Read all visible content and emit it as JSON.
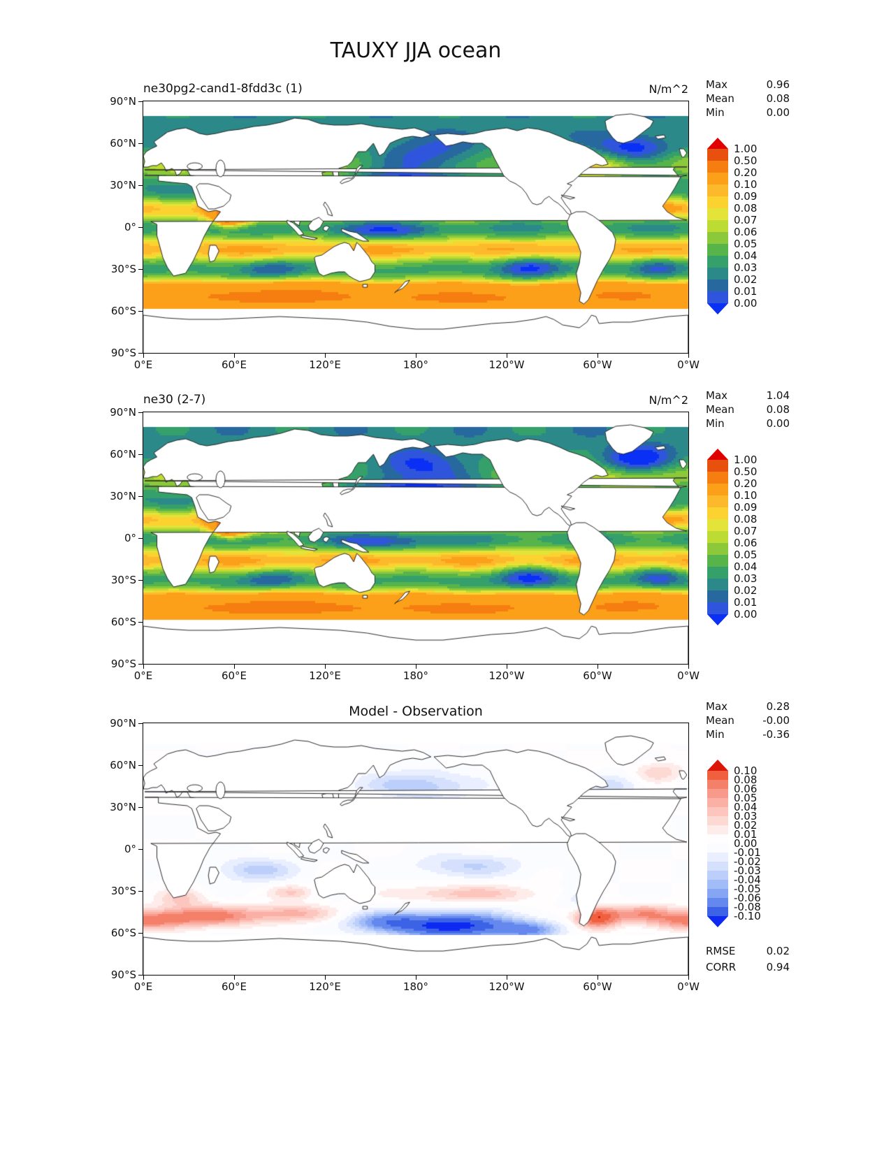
{
  "title": "TAUXY JJA ocean",
  "axes": {
    "lat_ticks": [
      "90°N",
      "60°N",
      "30°N",
      "0°",
      "30°S",
      "60°S",
      "90°S"
    ],
    "lon_ticks": [
      "0°E",
      "60°E",
      "120°E",
      "180°",
      "120°W",
      "60°W",
      "0°W"
    ]
  },
  "chart_data": [
    {
      "type": "heatmap",
      "title": "ne30pg2-cand1-8fdd3c (1)",
      "units": "N/m^2",
      "stats": [
        {
          "label": "Max",
          "value": "0.96"
        },
        {
          "label": "Mean",
          "value": "0.08"
        },
        {
          "label": "Min",
          "value": "0.00"
        }
      ],
      "colorbar": {
        "labels": [
          "1.00",
          "0.50",
          "0.20",
          "0.10",
          "0.09",
          "0.08",
          "0.07",
          "0.06",
          "0.05",
          "0.04",
          "0.03",
          "0.02",
          "0.01",
          "0.00"
        ],
        "levels": [
          1.0,
          0.5,
          0.2,
          0.1,
          0.09,
          0.08,
          0.07,
          0.06,
          0.05,
          0.04,
          0.03,
          0.02,
          0.01,
          0.0
        ],
        "colors": [
          "#e8500d",
          "#f67e11",
          "#fca01a",
          "#fdb92c",
          "#fbd22f",
          "#e4e339",
          "#bcdb33",
          "#8cc93a",
          "#57b44b",
          "#36a06b",
          "#2b8a89",
          "#27699f",
          "#2f55dd"
        ],
        "over": "#e00000",
        "under": "#0a2ff5"
      },
      "field": {
        "base": 0.025,
        "mask": {
          "latMin": -58.5,
          "latMax": 79
        },
        "zonal": [
          {
            "lat": -50,
            "w": 11,
            "a": 0.155
          },
          {
            "lat": -16,
            "w": 9,
            "a": 0.075
          },
          {
            "lat": 13,
            "w": 8,
            "a": 0.065
          },
          {
            "lat": 45,
            "w": 11,
            "a": 0.035
          }
        ],
        "blobs": [
          {
            "lon": 55,
            "lat": 8,
            "lw": 5,
            "law": 4,
            "a": 0.3
          },
          {
            "lon": 60,
            "lat": 10,
            "lw": 14,
            "law": 8,
            "a": 0.15
          },
          {
            "lon": 87,
            "lat": 11,
            "lw": 9,
            "law": 6,
            "a": 0.05
          },
          {
            "lon": 330,
            "lat": 14,
            "lw": 25,
            "law": 7,
            "a": 0.03
          },
          {
            "lon": 287,
            "lat": 14,
            "lw": 12,
            "law": 5,
            "a": 0.04
          },
          {
            "lon": 215,
            "lat": 14,
            "lw": 22,
            "law": 7,
            "a": 0.045
          },
          {
            "lon": 185,
            "lat": 46,
            "lw": 38,
            "law": 13,
            "a": -0.052
          },
          {
            "lon": 170,
            "lat": 28,
            "lw": 26,
            "law": 8,
            "a": -0.05
          },
          {
            "lon": 160,
            "lat": -3,
            "lw": 35,
            "law": 6,
            "a": -0.03
          },
          {
            "lon": 255,
            "lat": -28,
            "lw": 20,
            "law": 9,
            "a": -0.045
          },
          {
            "lon": 340,
            "lat": -28,
            "lw": 16,
            "law": 8,
            "a": -0.035
          },
          {
            "lon": 85,
            "lat": -30,
            "lw": 20,
            "law": 7,
            "a": -0.028
          },
          {
            "lon": 325,
            "lat": 55,
            "lw": 24,
            "law": 10,
            "a": -0.045
          },
          {
            "lon": 90,
            "lat": -49,
            "lw": 45,
            "law": 8,
            "a": 0.06
          },
          {
            "lon": 210,
            "lat": -52,
            "lw": 40,
            "law": 8,
            "a": 0.04
          },
          {
            "lon": 320,
            "lat": -47,
            "lw": 25,
            "law": 7,
            "a": 0.04
          },
          {
            "lon": 300,
            "lat": 42,
            "lw": 20,
            "law": 8,
            "a": 0.02
          }
        ],
        "wiggle": {
          "a": 0.008,
          "kx": 0.07,
          "ky": 0.15
        }
      }
    },
    {
      "type": "heatmap",
      "title": "ne30 (2-7)",
      "units": "N/m^2",
      "stats": [
        {
          "label": "Max",
          "value": "1.04"
        },
        {
          "label": "Mean",
          "value": "0.08"
        },
        {
          "label": "Min",
          "value": "0.00"
        }
      ],
      "colorbar": {
        "labels": [
          "1.00",
          "0.50",
          "0.20",
          "0.10",
          "0.09",
          "0.08",
          "0.07",
          "0.06",
          "0.05",
          "0.04",
          "0.03",
          "0.02",
          "0.01",
          "0.00"
        ],
        "levels": [
          1.0,
          0.5,
          0.2,
          0.1,
          0.09,
          0.08,
          0.07,
          0.06,
          0.05,
          0.04,
          0.03,
          0.02,
          0.01,
          0.0
        ],
        "colors": [
          "#e8500d",
          "#f67e11",
          "#fca01a",
          "#fdb92c",
          "#fbd22f",
          "#e4e339",
          "#bcdb33",
          "#8cc93a",
          "#57b44b",
          "#36a06b",
          "#2b8a89",
          "#27699f",
          "#2f55dd"
        ],
        "over": "#e00000",
        "under": "#0a2ff5"
      },
      "field": {
        "base": 0.025,
        "mask": {
          "latMin": -58.5,
          "latMax": 79
        },
        "zonal": [
          {
            "lat": -50,
            "w": 11,
            "a": 0.158
          },
          {
            "lat": -16,
            "w": 9,
            "a": 0.075
          },
          {
            "lat": 13,
            "w": 8,
            "a": 0.065
          },
          {
            "lat": 45,
            "w": 11,
            "a": 0.033
          }
        ],
        "blobs": [
          {
            "lon": 55,
            "lat": 8,
            "lw": 5,
            "law": 4,
            "a": 0.32
          },
          {
            "lon": 60,
            "lat": 10,
            "lw": 14,
            "law": 8,
            "a": 0.15
          },
          {
            "lon": 87,
            "lat": 11,
            "lw": 9,
            "law": 6,
            "a": 0.05
          },
          {
            "lon": 330,
            "lat": 14,
            "lw": 25,
            "law": 7,
            "a": 0.03
          },
          {
            "lon": 287,
            "lat": 14,
            "lw": 12,
            "law": 5,
            "a": 0.04
          },
          {
            "lon": 212,
            "lat": 14,
            "lw": 22,
            "law": 7,
            "a": 0.05
          },
          {
            "lon": 185,
            "lat": 46,
            "lw": 40,
            "law": 13,
            "a": -0.058
          },
          {
            "lon": 175,
            "lat": 30,
            "lw": 26,
            "law": 8,
            "a": -0.052
          },
          {
            "lon": 160,
            "lat": -3,
            "lw": 35,
            "law": 6,
            "a": -0.03
          },
          {
            "lon": 255,
            "lat": -28,
            "lw": 20,
            "law": 9,
            "a": -0.045
          },
          {
            "lon": 340,
            "lat": -28,
            "lw": 16,
            "law": 8,
            "a": -0.035
          },
          {
            "lon": 85,
            "lat": -30,
            "lw": 20,
            "law": 7,
            "a": -0.028
          },
          {
            "lon": 325,
            "lat": 55,
            "lw": 24,
            "law": 10,
            "a": -0.045
          },
          {
            "lon": 90,
            "lat": -49,
            "lw": 45,
            "law": 8,
            "a": 0.058
          },
          {
            "lon": 210,
            "lat": -52,
            "lw": 40,
            "law": 8,
            "a": 0.042
          },
          {
            "lon": 320,
            "lat": -47,
            "lw": 25,
            "law": 7,
            "a": 0.04
          },
          {
            "lon": 300,
            "lat": 42,
            "lw": 20,
            "law": 8,
            "a": 0.02
          }
        ],
        "wiggle": {
          "a": 0.008,
          "kx": 0.08,
          "ky": 0.16
        }
      }
    },
    {
      "type": "heatmap",
      "title": "Model - Observation",
      "units": "",
      "stats": [
        {
          "label": "Max",
          "value": "0.28"
        },
        {
          "label": "Mean",
          "value": "-0.00"
        },
        {
          "label": "Min",
          "value": "-0.36"
        }
      ],
      "scores": [
        {
          "label": "RMSE",
          "value": "0.02"
        },
        {
          "label": "CORR",
          "value": "0.94"
        }
      ],
      "colorbar": {
        "labels": [
          "0.10",
          "0.08",
          "0.06",
          "0.05",
          "0.04",
          "0.03",
          "0.02",
          "0.01",
          "0.00",
          "-0.01",
          "-0.02",
          "-0.03",
          "-0.04",
          "-0.05",
          "-0.06",
          "-0.08",
          "-0.10"
        ],
        "levels": [
          0.1,
          0.08,
          0.06,
          0.05,
          0.04,
          0.03,
          0.02,
          0.01,
          0.0,
          -0.01,
          -0.02,
          -0.03,
          -0.04,
          -0.05,
          -0.06,
          -0.08,
          -0.1
        ],
        "colors": [
          "#f0603f",
          "#f4806a",
          "#f79a8b",
          "#fab0a5",
          "#fcc5bd",
          "#fdd9d3",
          "#feecea",
          "#fffdfd",
          "#fbfcff",
          "#e9efff",
          "#d4e0fc",
          "#bccffa",
          "#a2bcf7",
          "#86a6f3",
          "#6488ee",
          "#3c63e6"
        ],
        "over": "#dc1505",
        "under": "#0c2af2"
      },
      "field": {
        "base": 0.0,
        "mask": {
          "latMin": -62,
          "latMax": 75
        },
        "zonal": [],
        "blobs": [
          {
            "lon": 40,
            "lat": -48,
            "lw": 40,
            "law": 7,
            "a": 0.07
          },
          {
            "lon": 0,
            "lat": -52,
            "lw": 25,
            "law": 6,
            "a": 0.05
          },
          {
            "lon": 100,
            "lat": -46,
            "lw": 25,
            "law": 6,
            "a": 0.04
          },
          {
            "lon": 300,
            "lat": -49,
            "lw": 14,
            "law": 7,
            "a": 0.1
          },
          {
            "lon": 330,
            "lat": -46,
            "lw": 20,
            "law": 6,
            "a": 0.05
          },
          {
            "lon": 205,
            "lat": -55,
            "lw": 40,
            "law": 9,
            "a": -0.11
          },
          {
            "lon": 160,
            "lat": -52,
            "lw": 25,
            "law": 7,
            "a": -0.05
          },
          {
            "lon": 255,
            "lat": -58,
            "lw": 20,
            "law": 6,
            "a": -0.05
          },
          {
            "lon": 215,
            "lat": -32,
            "lw": 45,
            "law": 6,
            "a": 0.035
          },
          {
            "lon": 180,
            "lat": 45,
            "lw": 35,
            "law": 10,
            "a": -0.04
          },
          {
            "lon": 145,
            "lat": 32,
            "lw": 18,
            "law": 7,
            "a": 0.025
          },
          {
            "lon": 215,
            "lat": -12,
            "lw": 35,
            "law": 8,
            "a": -0.03
          },
          {
            "lon": 75,
            "lat": -15,
            "lw": 25,
            "law": 8,
            "a": -0.035
          },
          {
            "lon": 98,
            "lat": -31,
            "lw": 14,
            "law": 5,
            "a": 0.03
          },
          {
            "lon": 25,
            "lat": -35,
            "lw": 15,
            "law": 6,
            "a": 0.03
          },
          {
            "lon": 340,
            "lat": 55,
            "lw": 15,
            "law": 7,
            "a": 0.03
          },
          {
            "lon": 310,
            "lat": 45,
            "lw": 18,
            "law": 8,
            "a": -0.025
          },
          {
            "lon": 290,
            "lat": -35,
            "lw": 12,
            "law": 8,
            "a": -0.02
          }
        ],
        "wiggle": {
          "a": 0.004,
          "kx": 0.09,
          "ky": 0.2
        }
      }
    }
  ]
}
